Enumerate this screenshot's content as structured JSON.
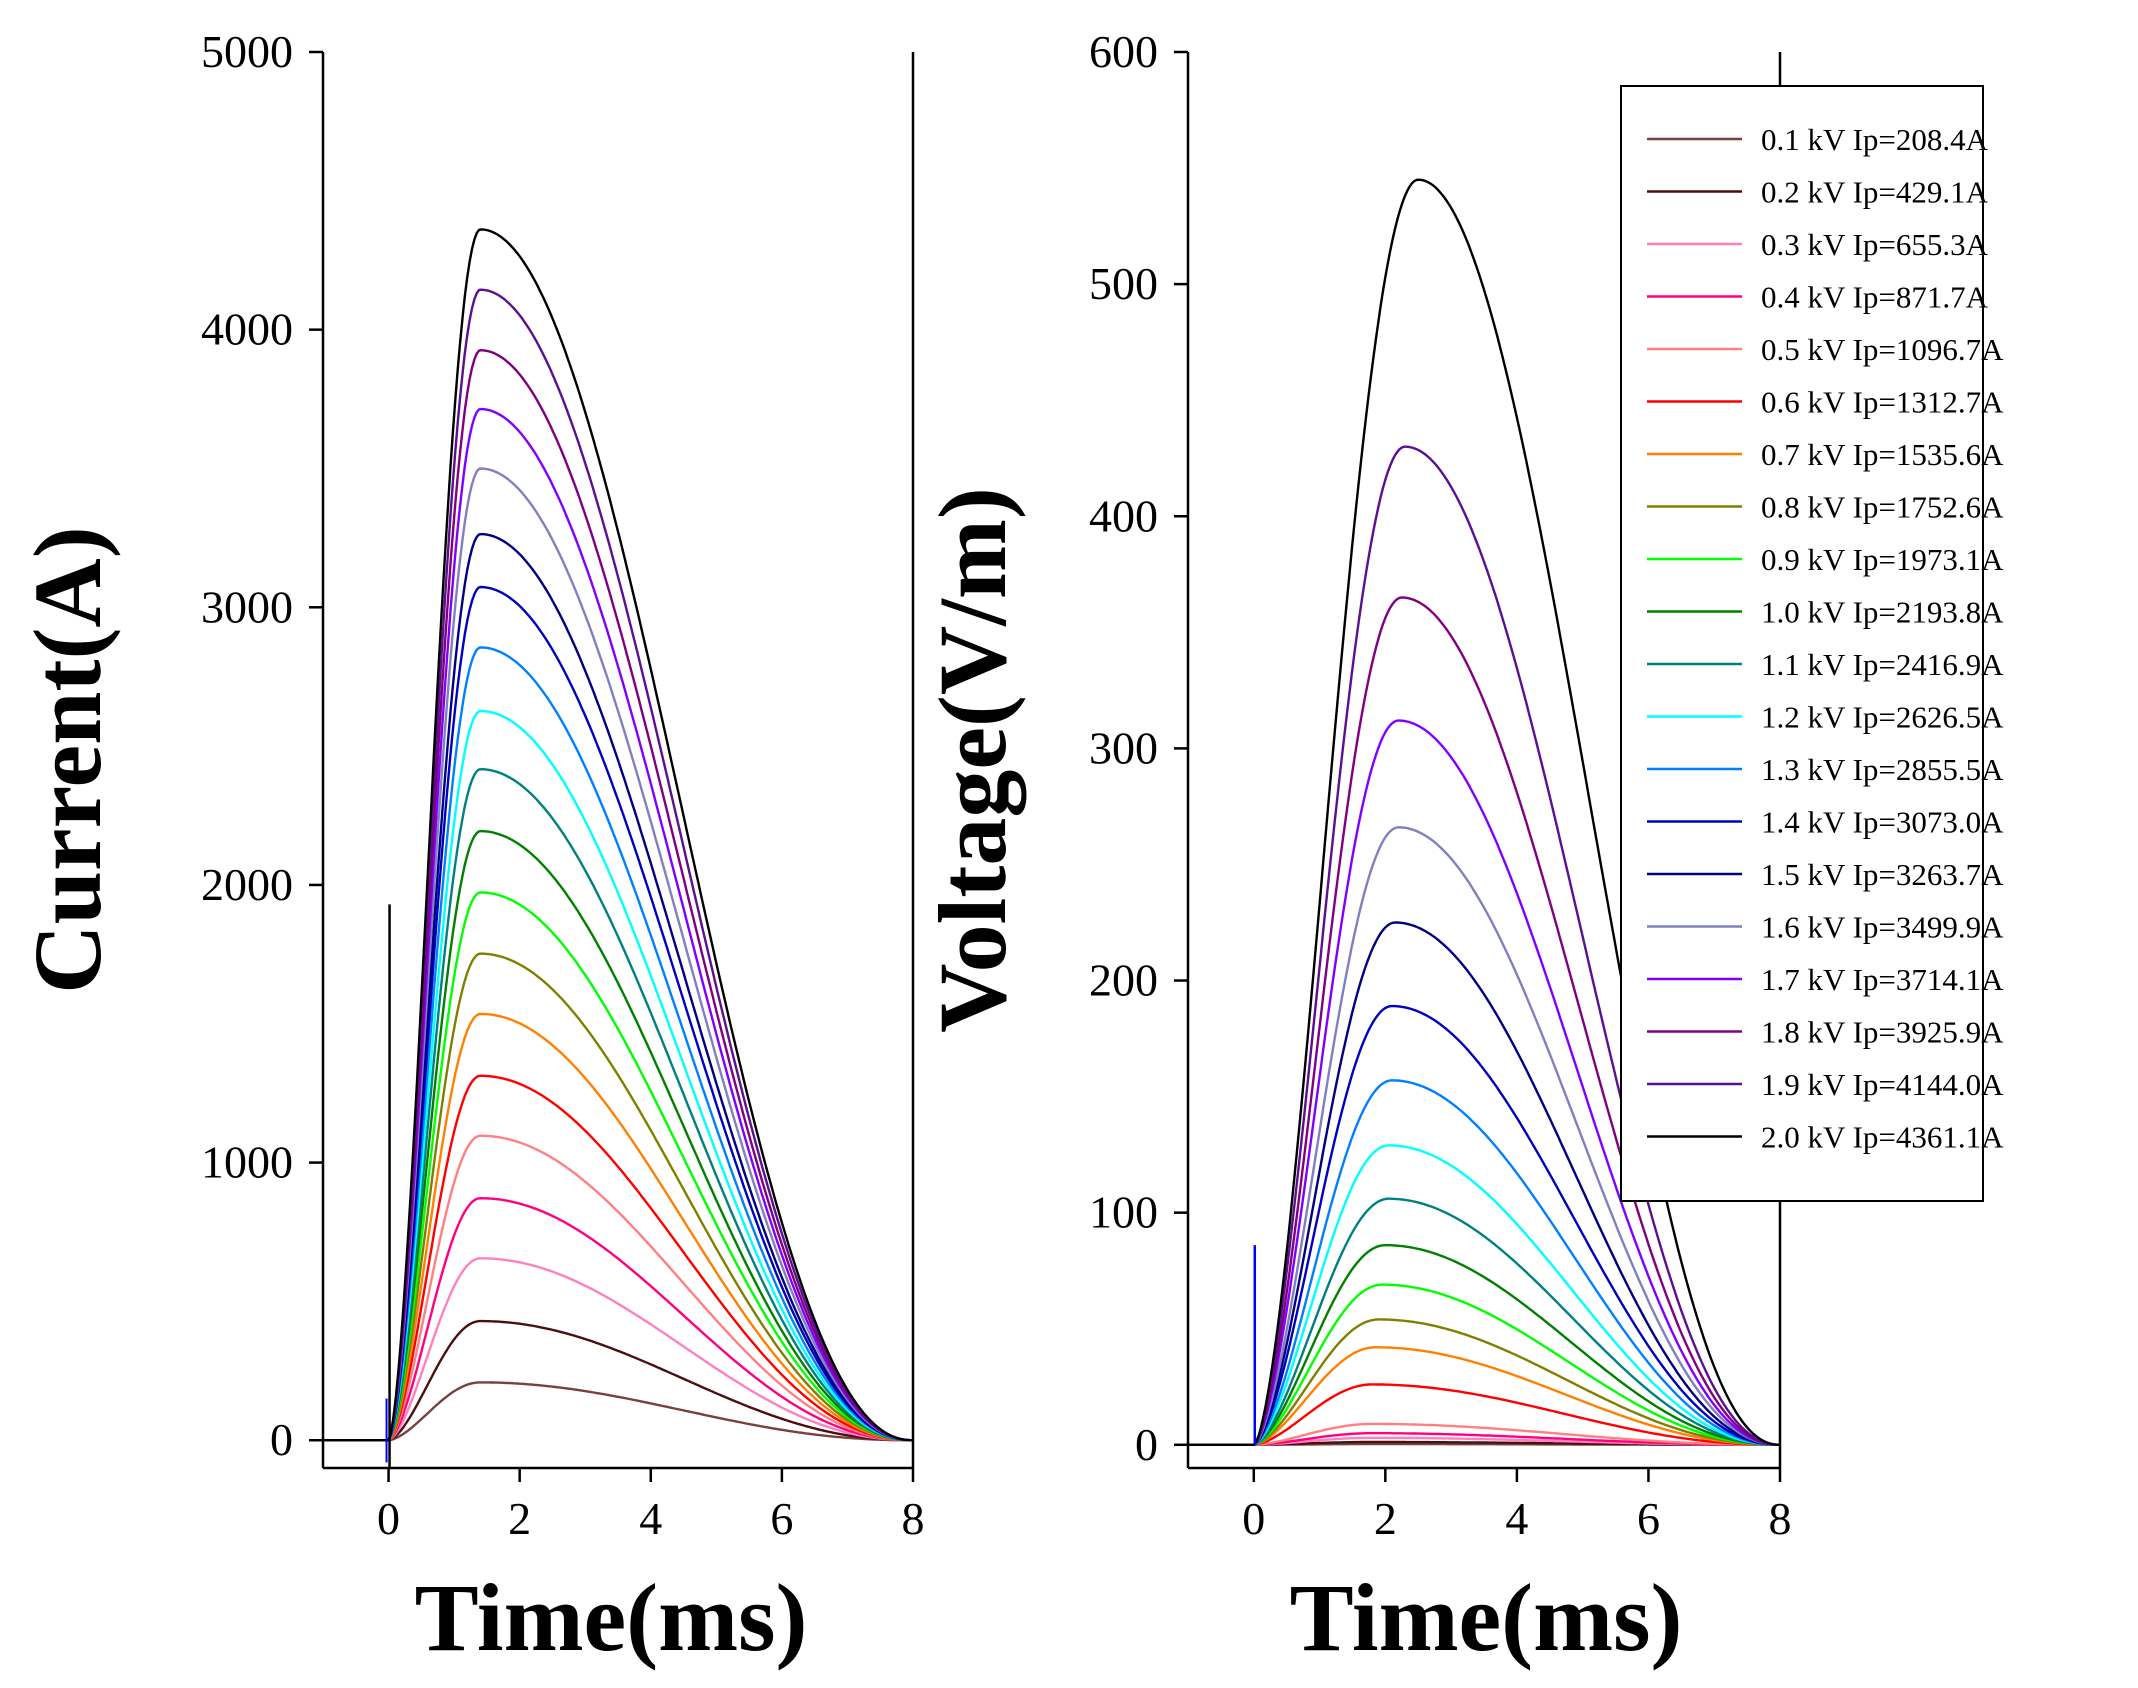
{
  "legend": [
    {
      "label": "0.1 kV Ip=208.4A",
      "color": "#7b3f3f"
    },
    {
      "label": "0.2 kV Ip=429.1A",
      "color": "#4a1010"
    },
    {
      "label": "0.3 kV  Ip=655.3A",
      "color": "#ff80c0"
    },
    {
      "label": "0.4 kV Ip=871.7A",
      "color": "#ff0080"
    },
    {
      "label": "0.5 kV Ip=1096.7A",
      "color": "#ff8080"
    },
    {
      "label": "0.6 kV Ip=1312.7A",
      "color": "#ff0000"
    },
    {
      "label": "0.7 kV Ip=1535.6A",
      "color": "#ff8000"
    },
    {
      "label": "0.8 kV Ip=1752.6A",
      "color": "#808000"
    },
    {
      "label": "0.9 kV Ip=1973.1A",
      "color": "#00ff00"
    },
    {
      "label": "1.0 kV Ip=2193.8A",
      "color": "#008000"
    },
    {
      "label": "1.1 kV Ip=2416.9A",
      "color": "#008080"
    },
    {
      "label": "1.2 kV Ip=2626.5A",
      "color": "#00ffff"
    },
    {
      "label": "1.3 kV Ip=2855.5A",
      "color": "#0080ff"
    },
    {
      "label": "1.4 kV Ip=3073.0A",
      "color": "#0000c0"
    },
    {
      "label": "1.5 kV Ip=3263.7A",
      "color": "#000080"
    },
    {
      "label": "1.6 kV Ip=3499.9A",
      "color": "#8080c0"
    },
    {
      "label": "1.7 kV Ip=3714.1A",
      "color": "#8000ff"
    },
    {
      "label": "1.8 kV Ip=3925.9A",
      "color": "#800080"
    },
    {
      "label": "1.9 kV Ip=4144.0A",
      "color": "#5a1090"
    },
    {
      "label": "2.0 kV Ip=4361.1A",
      "color": "#000000"
    }
  ],
  "chart_data": [
    {
      "type": "line",
      "title": "",
      "xlabel": "Time(ms)",
      "ylabel": "Current(A)",
      "xlim": [
        -1,
        8
      ],
      "ylim": [
        -100,
        5000
      ],
      "xticks": [
        0,
        2,
        4,
        6,
        8
      ],
      "xtick_labels": [
        "0",
        "2",
        "4",
        "6",
        "8"
      ],
      "yticks": [
        0,
        1000,
        2000,
        3000,
        4000,
        5000
      ],
      "ytick_labels": [
        "0",
        "1000",
        "2000",
        "3000",
        "4000",
        "5000"
      ],
      "grid": false,
      "curve_shape": {
        "start_ms": 0,
        "end_ms": 8,
        "peak_ms": 1.4
      },
      "spike": {
        "t": 0,
        "from": -100,
        "to": 1930
      },
      "series": [
        {
          "name": "0.1 kV Ip=208.4A",
          "peak": 208.4
        },
        {
          "name": "0.2 kV Ip=429.1A",
          "peak": 429.1
        },
        {
          "name": "0.3 kV  Ip=655.3A",
          "peak": 655.3
        },
        {
          "name": "0.4 kV Ip=871.7A",
          "peak": 871.7
        },
        {
          "name": "0.5 kV Ip=1096.7A",
          "peak": 1096.7
        },
        {
          "name": "0.6 kV Ip=1312.7A",
          "peak": 1312.7
        },
        {
          "name": "0.7 kV Ip=1535.6A",
          "peak": 1535.6
        },
        {
          "name": "0.8 kV Ip=1752.6A",
          "peak": 1752.6
        },
        {
          "name": "0.9 kV Ip=1973.1A",
          "peak": 1973.1
        },
        {
          "name": "1.0 kV Ip=2193.8A",
          "peak": 2193.8
        },
        {
          "name": "1.1 kV Ip=2416.9A",
          "peak": 2416.9
        },
        {
          "name": "1.2 kV Ip=2626.5A",
          "peak": 2626.5
        },
        {
          "name": "1.3 kV Ip=2855.5A",
          "peak": 2855.5
        },
        {
          "name": "1.4 kV Ip=3073.0A",
          "peak": 3073.0
        },
        {
          "name": "1.5 kV Ip=3263.7A",
          "peak": 3263.7
        },
        {
          "name": "1.6 kV Ip=3499.9A",
          "peak": 3499.9
        },
        {
          "name": "1.7 kV Ip=3714.1A",
          "peak": 3714.1
        },
        {
          "name": "1.8 kV Ip=3925.9A",
          "peak": 3925.9
        },
        {
          "name": "1.9 kV Ip=4144.0A",
          "peak": 4144.0
        },
        {
          "name": "2.0 kV Ip=4361.1A",
          "peak": 4361.1
        }
      ]
    },
    {
      "type": "line",
      "title": "",
      "xlabel": "Time(ms)",
      "ylabel": "Voltage(V/m)",
      "xlim": [
        -1,
        8
      ],
      "ylim": [
        -10,
        600
      ],
      "xticks": [
        0,
        2,
        4,
        6,
        8
      ],
      "xtick_labels": [
        "0",
        "2",
        "4",
        "6",
        "8"
      ],
      "yticks": [
        0,
        100,
        200,
        300,
        400,
        500,
        600
      ],
      "ytick_labels": [
        "0",
        "100",
        "200",
        "300",
        "400",
        "500",
        "600"
      ],
      "grid": false,
      "legend_position": "top-right",
      "curve_shape": {
        "start_ms": 0,
        "end_ms": 8
      },
      "spike": {
        "t": 0,
        "from": 0,
        "to": 86
      },
      "series": [
        {
          "name": "0.1 kV Ip=208.4A",
          "peak": 0.3,
          "peak_ms": 1.8
        },
        {
          "name": "0.2 kV Ip=429.1A",
          "peak": 1.2,
          "peak_ms": 1.8
        },
        {
          "name": "0.3 kV  Ip=655.3A",
          "peak": 3,
          "peak_ms": 1.8
        },
        {
          "name": "0.4 kV Ip=871.7A",
          "peak": 5,
          "peak_ms": 1.8
        },
        {
          "name": "0.5 kV Ip=1096.7A",
          "peak": 9,
          "peak_ms": 1.8
        },
        {
          "name": "0.6 kV Ip=1312.7A",
          "peak": 26,
          "peak_ms": 1.8
        },
        {
          "name": "0.7 kV Ip=1535.6A",
          "peak": 42,
          "peak_ms": 1.85
        },
        {
          "name": "0.8 kV Ip=1752.6A",
          "peak": 54,
          "peak_ms": 1.9
        },
        {
          "name": "0.9 kV Ip=1973.1A",
          "peak": 69,
          "peak_ms": 1.95
        },
        {
          "name": "1.0 kV Ip=2193.8A",
          "peak": 86,
          "peak_ms": 2.0
        },
        {
          "name": "1.1 kV Ip=2416.9A",
          "peak": 106,
          "peak_ms": 2.05
        },
        {
          "name": "1.2 kV Ip=2626.5A",
          "peak": 129,
          "peak_ms": 2.05
        },
        {
          "name": "1.3 kV Ip=2855.5A",
          "peak": 157,
          "peak_ms": 2.1
        },
        {
          "name": "1.4 kV Ip=3073.0A",
          "peak": 189,
          "peak_ms": 2.1
        },
        {
          "name": "1.5 kV Ip=3263.7A",
          "peak": 225,
          "peak_ms": 2.15
        },
        {
          "name": "1.6 kV Ip=3499.9A",
          "peak": 266,
          "peak_ms": 2.2
        },
        {
          "name": "1.7 kV Ip=3714.1A",
          "peak": 312,
          "peak_ms": 2.2
        },
        {
          "name": "1.8 kV Ip=3925.9A",
          "peak": 365,
          "peak_ms": 2.25
        },
        {
          "name": "1.9 kV Ip=4144.0A",
          "peak": 430,
          "peak_ms": 2.3
        },
        {
          "name": "2.0 kV Ip=4361.1A",
          "peak": 545,
          "peak_ms": 2.5
        }
      ]
    }
  ]
}
